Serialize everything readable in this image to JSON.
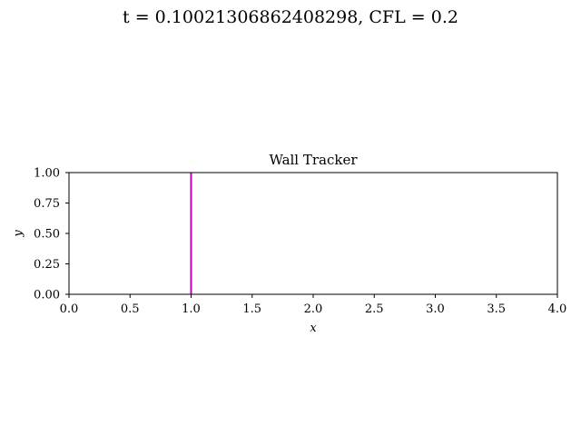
{
  "figure": {
    "suptitle": "t = 0.10021306862408298, CFL = 0.2"
  },
  "chart_data": {
    "type": "line",
    "title": "Wall Tracker",
    "xlabel": "x",
    "ylabel": "y",
    "xlim": [
      0.0,
      4.0
    ],
    "ylim": [
      0.0,
      1.0
    ],
    "xticks": [
      "0.0",
      "0.5",
      "1.0",
      "1.5",
      "2.0",
      "2.5",
      "3.0",
      "3.5",
      "4.0"
    ],
    "yticks": [
      "0.00",
      "0.25",
      "0.50",
      "0.75",
      "1.00"
    ],
    "grid": false,
    "legend": "none",
    "series": [
      {
        "color": "#bf00bf",
        "x": [
          1.0,
          1.0
        ],
        "y": [
          0.0,
          1.0
        ]
      }
    ]
  }
}
